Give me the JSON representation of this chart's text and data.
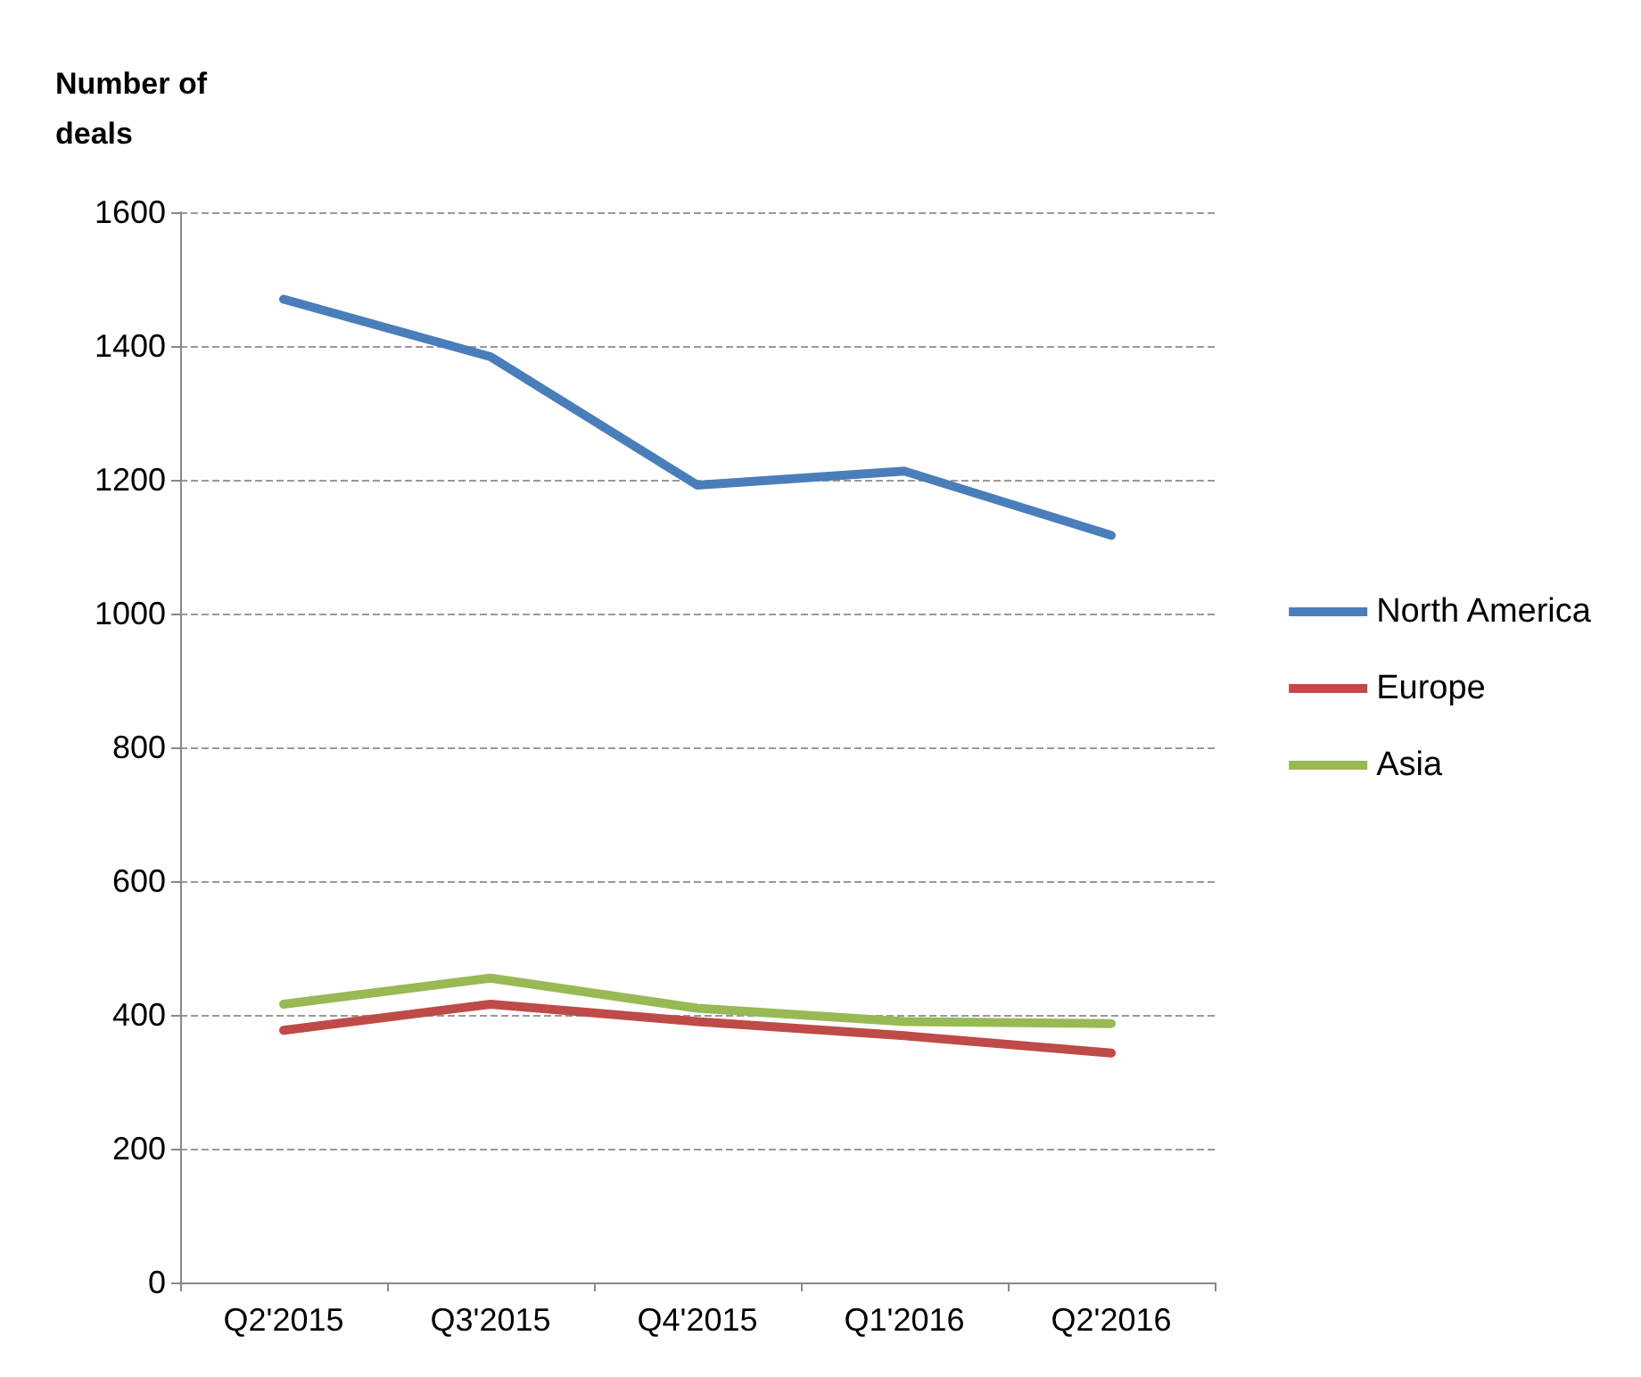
{
  "chart_data": {
    "type": "line",
    "ylabel": "Number of\ndeals",
    "categories": [
      "Q2'2015",
      "Q3'2015",
      "Q4'2015",
      "Q1'2016",
      "Q2'2016"
    ],
    "series": [
      {
        "name": "North America",
        "color": "#4a7ebb",
        "values": [
          1470,
          1384,
          1192,
          1213,
          1117
        ]
      },
      {
        "name": "Europe",
        "color": "#be4b48",
        "values": [
          377,
          416,
          390,
          369,
          343
        ]
      },
      {
        "name": "Asia",
        "color": "#98b954",
        "values": [
          416,
          455,
          410,
          390,
          387
        ]
      }
    ],
    "ylim": [
      0,
      1600
    ],
    "yticks": [
      0,
      200,
      400,
      600,
      800,
      1000,
      1200,
      1400,
      1600
    ],
    "grid": "y",
    "legend": "right",
    "marker": "none",
    "line_style": "solid"
  }
}
